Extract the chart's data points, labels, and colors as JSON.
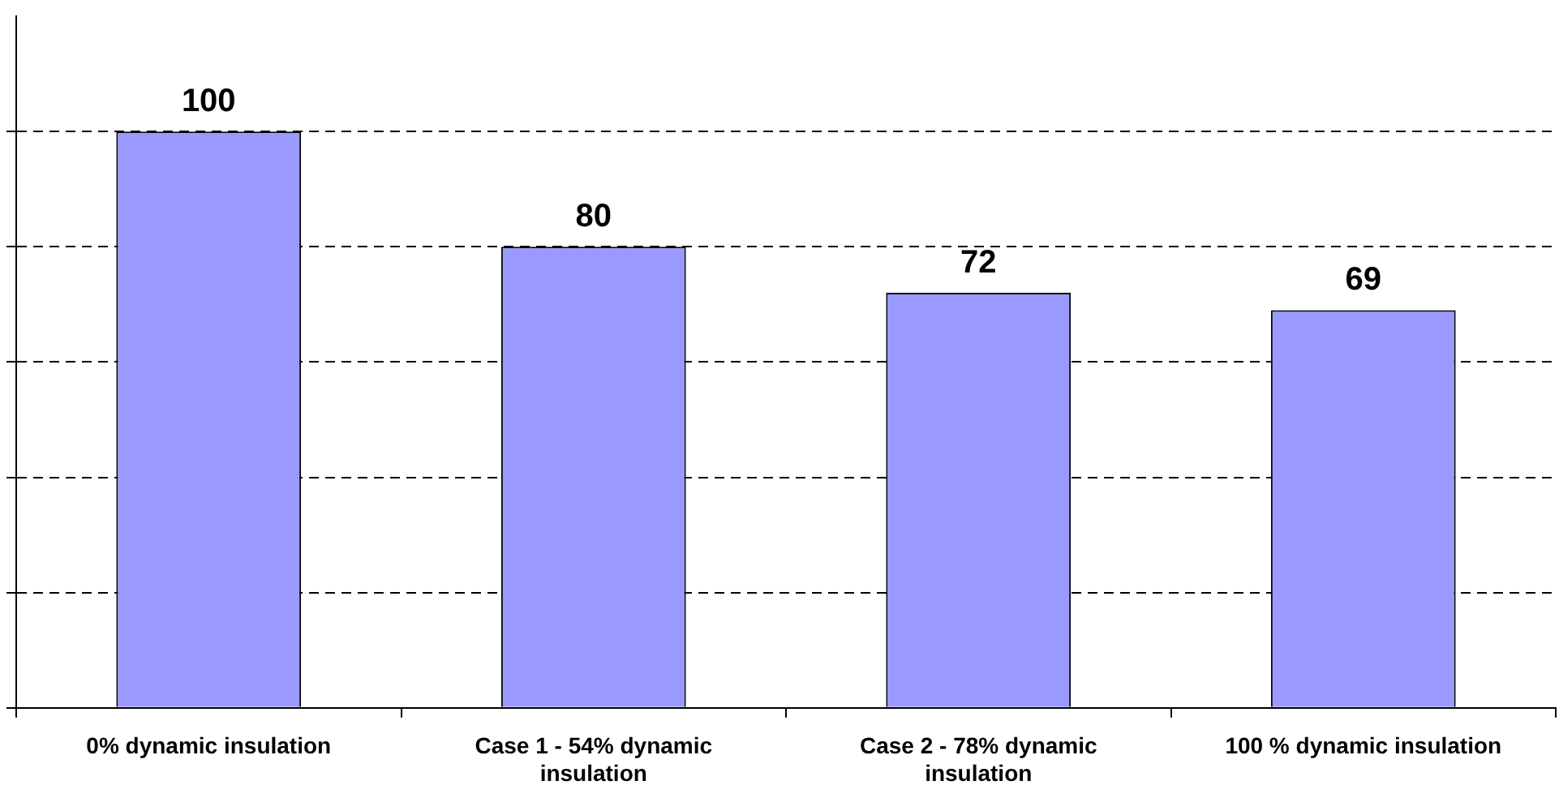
{
  "chart_data": {
    "type": "bar",
    "categories": [
      "0% dynamic insulation",
      "Case 1 - 54% dynamic insulation",
      "Case 2 - 78% dynamic insulation",
      "100 % dynamic insulation"
    ],
    "values": [
      100,
      80,
      72,
      69
    ],
    "color": "#9999ff",
    "data_labels": true,
    "ylim": [
      0,
      120
    ],
    "yticks": [
      {
        "value": 0,
        "label": null
      },
      {
        "value": 20,
        "label": null
      },
      {
        "value": 40,
        "label": null
      },
      {
        "value": 60,
        "label": null
      },
      {
        "value": 80,
        "label": null
      },
      {
        "value": 100,
        "label": null
      }
    ],
    "grid": "y",
    "line_style": "dashed",
    "tick_labels": "x",
    "legend": false
  }
}
